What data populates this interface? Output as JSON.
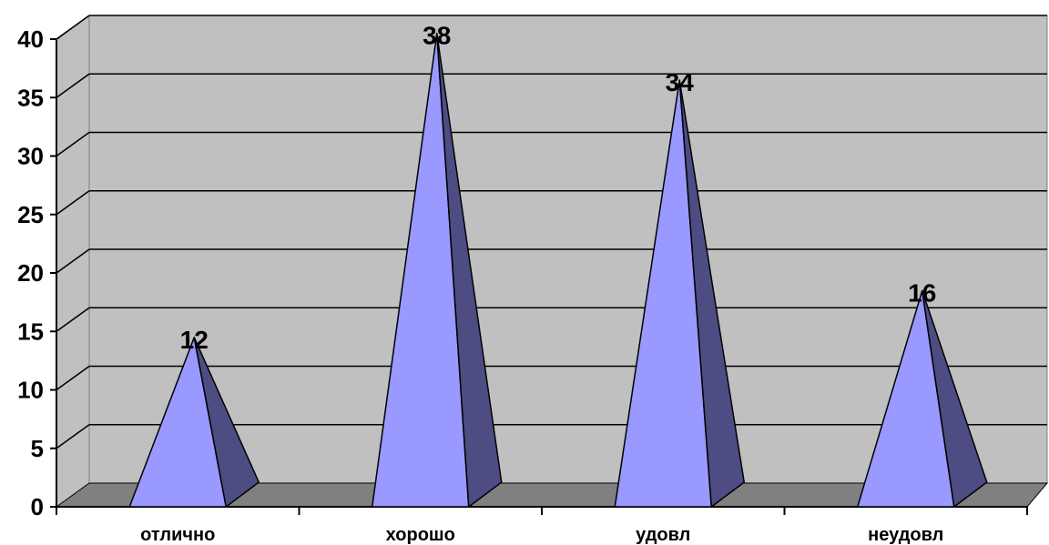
{
  "chart_data": {
    "type": "bar",
    "style": "3d-pyramid",
    "categories": [
      "отлично",
      "хорошо",
      "удовл",
      "неудовл"
    ],
    "values": [
      12,
      38,
      34,
      16
    ],
    "title": "",
    "xlabel": "",
    "ylabel": "",
    "ylim": [
      0,
      40
    ],
    "ytick_step": 5,
    "ytick_labels": [
      "0",
      "5",
      "10",
      "15",
      "20",
      "25",
      "30",
      "35",
      "40"
    ],
    "data_labels": [
      "12",
      "38",
      "34",
      "16"
    ],
    "grid": true,
    "legend": "none",
    "colors": {
      "wall": "#c0c0c0",
      "floor": "#808080",
      "pyramid_front": "#9999ff",
      "pyramid_side": "#4d4d84",
      "grid": "#000000"
    }
  }
}
